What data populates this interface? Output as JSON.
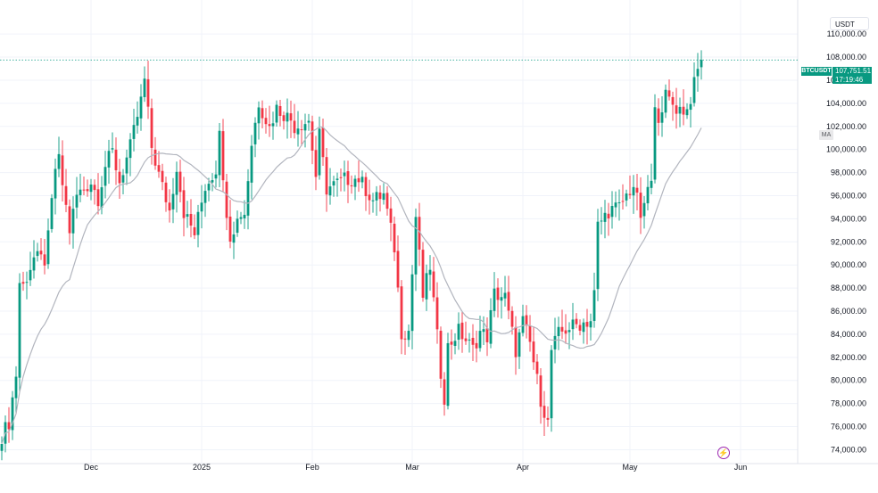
{
  "header": {
    "currency": "USDT"
  },
  "symbol": {
    "ticker": "BTCUSDT",
    "last_price": "107,751.51",
    "countdown": "17:19:46"
  },
  "indicator": {
    "label": "MA"
  },
  "icons": {
    "lightning": "lightning-icon"
  },
  "colors": {
    "up": "#089981",
    "down": "#f23645",
    "ma": "#b2b5be",
    "grid": "#f0f3fa",
    "price_line": "#089981"
  },
  "chart_data": {
    "type": "candlestick",
    "title": "",
    "xlabel": "",
    "ylabel": "",
    "ylim": [
      72800,
      111400
    ],
    "y_ticks": [
      "110,000.00",
      "108,000.00",
      "106,000.00",
      "104,000.00",
      "102,000.00",
      "100,000.00",
      "98,000.00",
      "96,000.00",
      "94,000.00",
      "92,000.00",
      "90,000.00",
      "88,000.00",
      "86,000.00",
      "84,000.00",
      "82,000.00",
      "80,000.00",
      "78,000.00",
      "76,000.00",
      "74,000.00"
    ],
    "x_ticks": [
      "Dec",
      "2025",
      "Feb",
      "Mar",
      "Apr",
      "May",
      "Jun"
    ],
    "x_tick_dates": [
      "2024-12-01",
      "2025-01-01",
      "2025-02-01",
      "2025-03-01",
      "2025-04-01",
      "2025-05-01",
      "2025-06-01"
    ],
    "start_date": "2024-11-06",
    "grid": true,
    "current_price": 107751.51,
    "series": [
      {
        "name": "BTCUSDT",
        "opens": [],
        "highs": [],
        "lows": [],
        "closes": []
      },
      {
        "name": "MA",
        "values": []
      }
    ],
    "close_anchors": [
      {
        "date": "2024-11-06",
        "value": 74500
      },
      {
        "date": "2024-11-07",
        "value": 75800
      },
      {
        "date": "2024-11-08",
        "value": 76400
      },
      {
        "date": "2024-11-10",
        "value": 80500
      },
      {
        "date": "2024-11-11",
        "value": 88500
      },
      {
        "date": "2024-11-12",
        "value": 88200
      },
      {
        "date": "2024-11-15",
        "value": 90600
      },
      {
        "date": "2024-11-18",
        "value": 90400
      },
      {
        "date": "2024-11-19",
        "value": 92300
      },
      {
        "date": "2024-11-21",
        "value": 98400
      },
      {
        "date": "2024-11-22",
        "value": 99000
      },
      {
        "date": "2024-11-25",
        "value": 93000
      },
      {
        "date": "2024-11-27",
        "value": 96000
      },
      {
        "date": "2024-12-01",
        "value": 97200
      },
      {
        "date": "2024-12-03",
        "value": 95800
      },
      {
        "date": "2024-12-05",
        "value": 98600
      },
      {
        "date": "2024-12-07",
        "value": 99800
      },
      {
        "date": "2024-12-09",
        "value": 97200
      },
      {
        "date": "2024-12-12",
        "value": 100200
      },
      {
        "date": "2024-12-15",
        "value": 104200
      },
      {
        "date": "2024-12-16",
        "value": 106000
      },
      {
        "date": "2024-12-18",
        "value": 100200
      },
      {
        "date": "2024-12-20",
        "value": 97800
      },
      {
        "date": "2024-12-23",
        "value": 94700
      },
      {
        "date": "2024-12-25",
        "value": 98600
      },
      {
        "date": "2024-12-27",
        "value": 94600
      },
      {
        "date": "2024-12-30",
        "value": 92700
      },
      {
        "date": "2025-01-02",
        "value": 96800
      },
      {
        "date": "2025-01-05",
        "value": 98300
      },
      {
        "date": "2025-01-06",
        "value": 102200
      },
      {
        "date": "2025-01-07",
        "value": 96900
      },
      {
        "date": "2025-01-09",
        "value": 92600
      },
      {
        "date": "2025-01-12",
        "value": 94500
      },
      {
        "date": "2025-01-13",
        "value": 94500
      },
      {
        "date": "2025-01-15",
        "value": 100500
      },
      {
        "date": "2025-01-17",
        "value": 104100
      },
      {
        "date": "2025-01-20",
        "value": 101900
      },
      {
        "date": "2025-01-22",
        "value": 103600
      },
      {
        "date": "2025-01-26",
        "value": 102600
      },
      {
        "date": "2025-01-27",
        "value": 102000
      },
      {
        "date": "2025-01-31",
        "value": 102500
      },
      {
        "date": "2025-02-02",
        "value": 97700
      },
      {
        "date": "2025-02-03",
        "value": 101200
      },
      {
        "date": "2025-02-05",
        "value": 96600
      },
      {
        "date": "2025-02-10",
        "value": 97400
      },
      {
        "date": "2025-02-14",
        "value": 97500
      },
      {
        "date": "2025-02-18",
        "value": 95600
      },
      {
        "date": "2025-02-21",
        "value": 96100
      },
      {
        "date": "2025-02-24",
        "value": 91500
      },
      {
        "date": "2025-02-26",
        "value": 84200
      },
      {
        "date": "2025-02-28",
        "value": 84300
      },
      {
        "date": "2025-03-02",
        "value": 94200
      },
      {
        "date": "2025-03-04",
        "value": 87300
      },
      {
        "date": "2025-03-06",
        "value": 89900
      },
      {
        "date": "2025-03-09",
        "value": 80700
      },
      {
        "date": "2025-03-10",
        "value": 78600
      },
      {
        "date": "2025-03-11",
        "value": 82900
      },
      {
        "date": "2025-03-14",
        "value": 84300
      },
      {
        "date": "2025-03-18",
        "value": 82700
      },
      {
        "date": "2025-03-20",
        "value": 84200
      },
      {
        "date": "2025-03-22",
        "value": 83800
      },
      {
        "date": "2025-03-24",
        "value": 87500
      },
      {
        "date": "2025-03-27",
        "value": 87200
      },
      {
        "date": "2025-03-30",
        "value": 82600
      },
      {
        "date": "2025-04-01",
        "value": 85100
      },
      {
        "date": "2025-04-03",
        "value": 83200
      },
      {
        "date": "2025-04-06",
        "value": 78400
      },
      {
        "date": "2025-04-08",
        "value": 76300
      },
      {
        "date": "2025-04-09",
        "value": 82600
      },
      {
        "date": "2025-04-11",
        "value": 84000
      },
      {
        "date": "2025-04-14",
        "value": 84600
      },
      {
        "date": "2025-04-17",
        "value": 84900
      },
      {
        "date": "2025-04-20",
        "value": 85200
      },
      {
        "date": "2025-04-21",
        "value": 87500
      },
      {
        "date": "2025-04-22",
        "value": 93400
      },
      {
        "date": "2025-04-25",
        "value": 94700
      },
      {
        "date": "2025-04-28",
        "value": 95000
      },
      {
        "date": "2025-05-01",
        "value": 96500
      },
      {
        "date": "2025-05-02",
        "value": 96900
      },
      {
        "date": "2025-05-04",
        "value": 94300
      },
      {
        "date": "2025-05-05",
        "value": 94700
      },
      {
        "date": "2025-05-06",
        "value": 96800
      },
      {
        "date": "2025-05-07",
        "value": 97000
      },
      {
        "date": "2025-05-08",
        "value": 103200
      },
      {
        "date": "2025-05-09",
        "value": 103000
      },
      {
        "date": "2025-05-11",
        "value": 104600
      },
      {
        "date": "2025-05-14",
        "value": 103600
      },
      {
        "date": "2025-05-17",
        "value": 103400
      },
      {
        "date": "2025-05-19",
        "value": 105600
      },
      {
        "date": "2025-05-20",
        "value": 106800
      },
      {
        "date": "2025-05-21",
        "value": 107751.51
      }
    ]
  }
}
